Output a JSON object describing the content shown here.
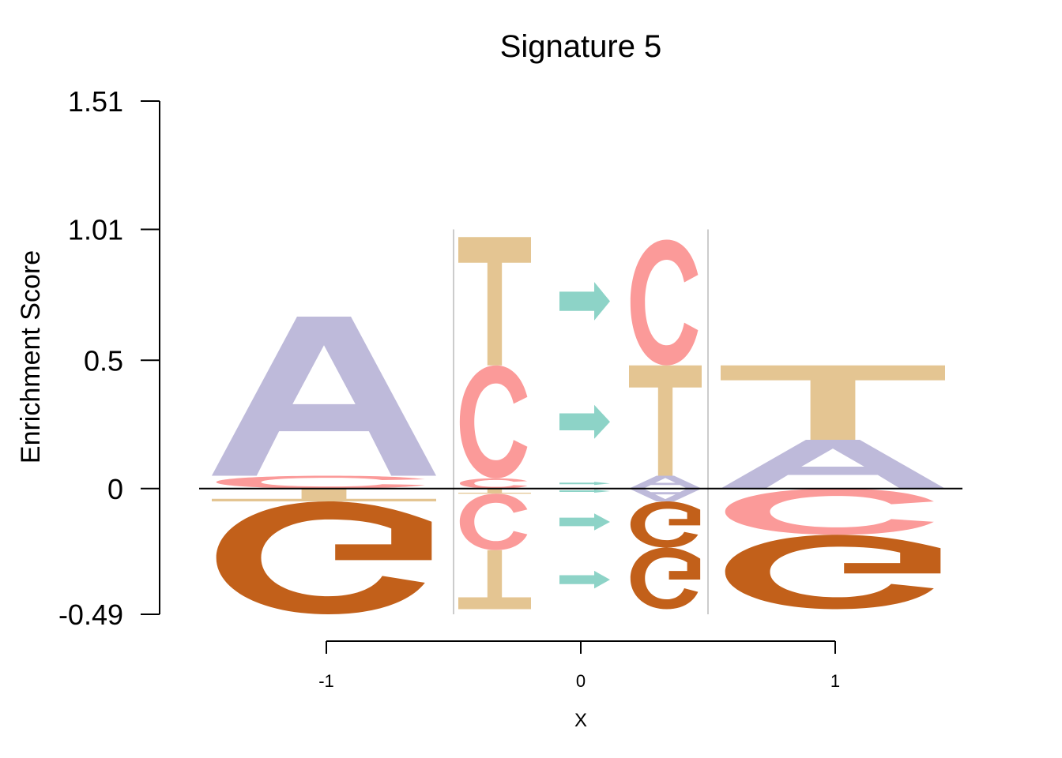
{
  "chart_data": {
    "type": "sequence-logo",
    "title": "Signature 5",
    "ylabel": "Enrichment Score",
    "xlabel": "X",
    "ylim": [
      -0.49,
      1.51
    ],
    "yticks": [
      "-0.49",
      "0",
      "0.5",
      "1.01",
      "1.51"
    ],
    "ytick_values": [
      -0.49,
      0,
      0.5,
      1.01,
      1.51
    ],
    "xticks": [
      "-1",
      "0",
      "1"
    ],
    "xtick_values": [
      -1,
      0,
      1
    ],
    "colors": {
      "A": "#bebada",
      "C": "#fb9a99",
      "G": "#c2601a",
      "T": "#e4c592",
      "arrow": "#8dd3c7"
    },
    "positions": [
      {
        "x": -1,
        "positive": [
          {
            "letter": "C",
            "height": 0.05
          },
          {
            "letter": "A",
            "height": 0.62
          }
        ],
        "negative": [
          {
            "letter": "T",
            "height": 0.05
          },
          {
            "letter": "G",
            "height": 0.44
          }
        ]
      },
      {
        "x": 0,
        "substitutions": [
          {
            "from": "C",
            "to": "T",
            "sign": "positive",
            "rows": [
              {
                "from": "C",
                "to": "T",
                "y_from": 0.0,
                "y_to": 0.03
              },
              {
                "from": "C",
                "to": "T",
                "y_from": 0.0,
                "y_to": 0.48
              },
              {
                "from": "T",
                "to": "C",
                "y_from": 0.48,
                "y_to": 0.98
              }
            ]
          }
        ],
        "left_positive": [
          {
            "letter": "C",
            "height": 0.04
          },
          {
            "letter": "C",
            "height": 0.44
          },
          {
            "letter": "T",
            "height": 0.5
          }
        ],
        "left_negative": [
          {
            "letter": "T",
            "height": 0.02
          },
          {
            "letter": "C",
            "height": 0.22
          },
          {
            "letter": "T",
            "height": 0.23
          }
        ],
        "right_positive": [
          {
            "letter": "A",
            "height": 0.05
          },
          {
            "letter": "T",
            "height": 0.43
          },
          {
            "letter": "C",
            "height": 0.49
          }
        ],
        "right_negative": [
          {
            "letter": "A",
            "height": 0.05
          },
          {
            "letter": "G",
            "height": 0.18
          },
          {
            "letter": "G",
            "height": 0.24
          }
        ]
      },
      {
        "x": 1,
        "positive": [
          {
            "letter": "A",
            "height": 0.19
          },
          {
            "letter": "T",
            "height": 0.29
          }
        ],
        "negative": [
          {
            "letter": "C",
            "height": 0.18
          },
          {
            "letter": "G",
            "height": 0.29
          }
        ]
      }
    ]
  }
}
